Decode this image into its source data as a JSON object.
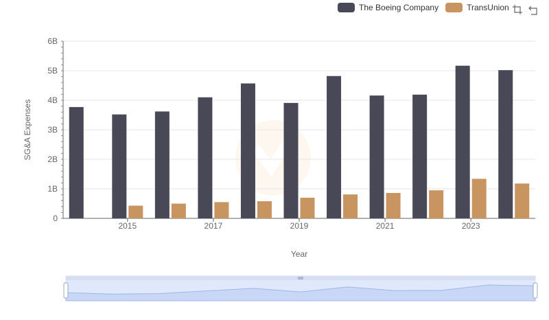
{
  "chart_data": {
    "type": "bar",
    "x": [
      2014,
      2015,
      2016,
      2017,
      2018,
      2019,
      2020,
      2021,
      2022,
      2023,
      2024
    ],
    "x_tick_labels": [
      "2015",
      "2017",
      "2019",
      "2021",
      "2023"
    ],
    "series": [
      {
        "name": "The Boeing Company",
        "color": "#484856",
        "values": [
          3.77,
          3.52,
          3.62,
          4.1,
          4.57,
          3.91,
          4.82,
          4.16,
          4.19,
          5.17,
          5.02
        ]
      },
      {
        "name": "TransUnion",
        "color": "#c89460",
        "values": [
          null,
          0.43,
          0.5,
          0.55,
          0.58,
          0.7,
          0.81,
          0.86,
          0.95,
          1.34,
          1.18
        ]
      }
    ],
    "xlabel": "Year",
    "ylabel": "SG&A Expenses",
    "ylim": [
      0,
      6
    ],
    "y_ticks": [
      "0",
      "1B",
      "2B",
      "3B",
      "4B",
      "5B",
      "6B"
    ],
    "grid": true,
    "legend_position": "top-right"
  },
  "legend": {
    "items": [
      {
        "label": "The Boeing Company",
        "color": "#484856"
      },
      {
        "label": "TransUnion",
        "color": "#c89460"
      }
    ]
  },
  "toolbox": {
    "zoom_icon": "zoom-icon",
    "restore_icon": "restore-icon"
  }
}
